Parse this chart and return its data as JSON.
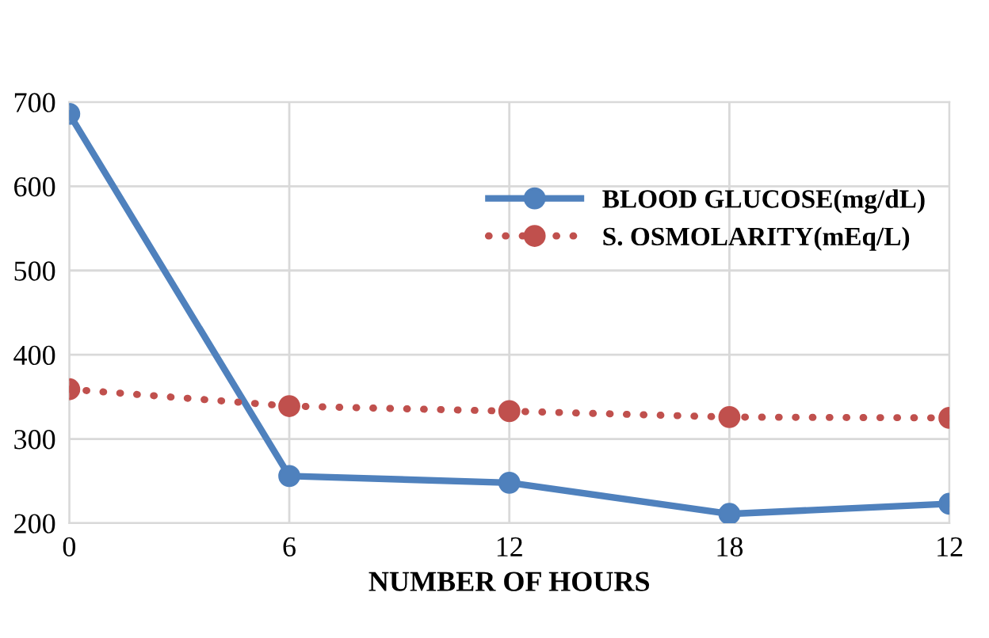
{
  "chart_data": {
    "type": "line",
    "xlabel": "NUMBER OF HOURS",
    "categories": [
      "0",
      "6",
      "12",
      "18",
      "12"
    ],
    "series": [
      {
        "name": "BLOOD GLUCOSE(mg/dL)",
        "color": "#4f81bd",
        "values": [
          686,
          256,
          248,
          211,
          223
        ],
        "line_style": "solid"
      },
      {
        "name": "S. OSMOLARITY(mEq/L)",
        "color": "#c0504d",
        "values": [
          359,
          339,
          333,
          326,
          325
        ],
        "line_style": "dotted"
      }
    ],
    "ylim": [
      200,
      700
    ],
    "yticks": [
      200,
      300,
      400,
      500,
      600,
      700
    ],
    "grid": true,
    "legend": "right",
    "marker": "circle"
  }
}
